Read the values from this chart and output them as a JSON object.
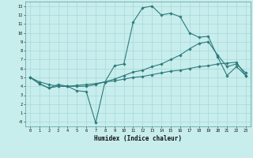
{
  "title": "",
  "xlabel": "Humidex (Indice chaleur)",
  "ylabel": "",
  "bg_color": "#c8eded",
  "line_color": "#2d7b7b",
  "grid_color": "#a8d8d8",
  "xlim": [
    -0.5,
    23.5
  ],
  "ylim": [
    -0.5,
    13.5
  ],
  "xticks": [
    0,
    1,
    2,
    3,
    4,
    5,
    6,
    7,
    8,
    9,
    10,
    11,
    12,
    13,
    14,
    15,
    16,
    17,
    18,
    19,
    20,
    21,
    22,
    23
  ],
  "yticks": [
    0,
    1,
    2,
    3,
    4,
    5,
    6,
    7,
    8,
    9,
    10,
    11,
    12,
    13
  ],
  "ytick_labels": [
    "-0",
    "1",
    "2",
    "3",
    "4",
    "5",
    "6",
    "7",
    "8",
    "9",
    "10",
    "11",
    "12",
    "13"
  ],
  "line1_x": [
    0,
    1,
    2,
    3,
    4,
    5,
    6,
    7,
    8,
    9,
    10,
    11,
    12,
    13,
    14,
    15,
    16,
    17,
    18,
    19,
    20,
    21,
    22,
    23
  ],
  "line1_y": [
    5.0,
    4.3,
    3.8,
    4.2,
    4.0,
    3.5,
    3.4,
    -0.1,
    4.5,
    6.3,
    6.5,
    11.2,
    12.8,
    13.0,
    12.0,
    12.2,
    11.8,
    10.0,
    9.5,
    9.6,
    7.3,
    5.2,
    6.2,
    5.2
  ],
  "line2_x": [
    0,
    1,
    2,
    3,
    4,
    5,
    6,
    7,
    8,
    9,
    10,
    11,
    12,
    13,
    14,
    15,
    16,
    17,
    18,
    19,
    20,
    21,
    22,
    23
  ],
  "line2_y": [
    5.0,
    4.3,
    3.8,
    4.0,
    4.0,
    4.0,
    4.0,
    4.2,
    4.5,
    4.8,
    5.2,
    5.6,
    5.8,
    6.2,
    6.5,
    7.0,
    7.5,
    8.2,
    8.8,
    9.0,
    7.5,
    6.2,
    6.5,
    5.5
  ],
  "line3_x": [
    0,
    1,
    2,
    3,
    4,
    5,
    6,
    7,
    8,
    9,
    10,
    11,
    12,
    13,
    14,
    15,
    16,
    17,
    18,
    19,
    20,
    21,
    22,
    23
  ],
  "line3_y": [
    5.0,
    4.5,
    4.2,
    4.0,
    4.0,
    4.1,
    4.2,
    4.3,
    4.5,
    4.6,
    4.8,
    5.0,
    5.1,
    5.3,
    5.5,
    5.7,
    5.8,
    6.0,
    6.2,
    6.3,
    6.5,
    6.6,
    6.7,
    5.2
  ]
}
